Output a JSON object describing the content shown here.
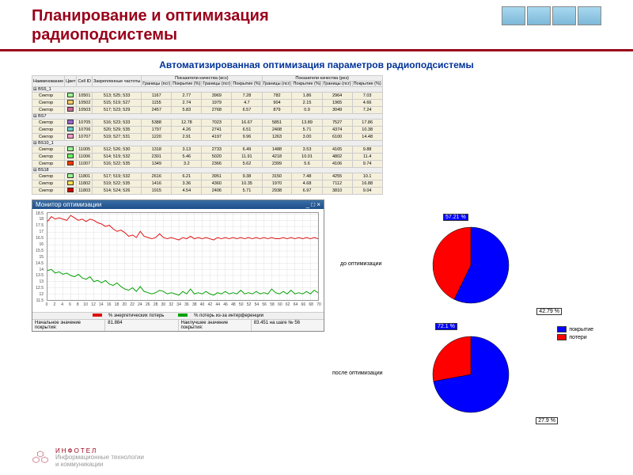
{
  "header": {
    "title_l1": "Планирование и оптимизация",
    "title_l2": "радиоподсистемы"
  },
  "subtitle": "Автоматизированная оптимизация параметров радиоподсистемы",
  "table": {
    "head_top": [
      "Наименование",
      "Цвет",
      "Cell ID",
      "Закрепленные частоты",
      "Показатели качества (исх)",
      "Показатели качества (рез)"
    ],
    "head_sub_q": [
      "Границы (псг)",
      "Покрытие (%)",
      "Границы (псг)",
      "Покрытие (%)",
      "Границы (псг)",
      "Покрытие (%)",
      "Границы (псг)",
      "Покрытие (%)"
    ],
    "groups": [
      {
        "bs": "BS5_1",
        "rows": [
          {
            "name": "Сектор",
            "c": "#99ff99",
            "id": "10501",
            "f": "513; 525; 533",
            "v": [
              "1167",
              "2.77",
              "3969",
              "7.28",
              "782",
              "1.86",
              "2964",
              "7.03"
            ]
          },
          {
            "name": "Сектор",
            "c": "#ffcc66",
            "id": "10502",
            "f": "515; 519; 527",
            "v": [
              "1155",
              "2.74",
              "1979",
              "4.7",
              "904",
              "2.15",
              "1965",
              "4.66"
            ]
          },
          {
            "name": "Сектор",
            "c": "#cc6699",
            "id": "10503",
            "f": "517; 523; 529",
            "v": [
              "2457",
              "5.83",
              "2768",
              "6.57",
              "879",
              "0.9",
              "3049",
              "7.24"
            ]
          }
        ]
      },
      {
        "bs": "BS7",
        "rows": [
          {
            "name": "Сектор",
            "c": "#9966cc",
            "id": "10705",
            "f": "516; 523; 533",
            "v": [
              "5388",
              "12.78",
              "7023",
              "16.67",
              "5851",
              "13.89",
              "7527",
              "17.86"
            ]
          },
          {
            "name": "Сектор",
            "c": "#66cccc",
            "id": "10706",
            "f": "520; 529; 535",
            "v": [
              "1797",
              "4.26",
              "2741",
              "6.51",
              "2408",
              "5.71",
              "4374",
              "10.38"
            ]
          },
          {
            "name": "Сектор",
            "c": "#ff99cc",
            "id": "10707",
            "f": "519; 527; 531",
            "v": [
              "1220",
              "2.91",
              "4197",
              "9.96",
              "1263",
              "3.00",
              "6100",
              "14.48"
            ]
          }
        ]
      },
      {
        "bs": "BS10_1",
        "rows": [
          {
            "name": "Сектор",
            "c": "#99ff99",
            "id": "11005",
            "f": "512; 526; 530",
            "v": [
              "1318",
              "3.13",
              "2733",
              "6.49",
              "1488",
              "3.53",
              "4165",
              "9.88"
            ]
          },
          {
            "name": "Сектор",
            "c": "#66ff66",
            "id": "11006",
            "f": "514; 519; 532",
            "v": [
              "2301",
              "5.46",
              "5020",
              "11.91",
              "4218",
              "10.01",
              "4802",
              "11.4"
            ]
          },
          {
            "name": "Сектор",
            "c": "#ff3300",
            "id": "11007",
            "f": "516; 522; 535",
            "v": [
              "1349",
              "3.2",
              "2366",
              "5.62",
              "2399",
              "5.6",
              "4106",
              "9.74"
            ]
          }
        ]
      },
      {
        "bs": "BS18",
        "rows": [
          {
            "name": "Сектор",
            "c": "#99ff99",
            "id": "11801",
            "f": "517; 519; 532",
            "v": [
              "2616",
              "6.21",
              "3951",
              "9.38",
              "3150",
              "7.48",
              "4255",
              "10.1"
            ]
          },
          {
            "name": "Сектор",
            "c": "#ffdd55",
            "id": "11802",
            "f": "519; 522; 535",
            "v": [
              "1416",
              "3.36",
              "4360",
              "10.35",
              "1970",
              "4.68",
              "7112",
              "16.88"
            ]
          },
          {
            "name": "Сектор",
            "c": "#cc0000",
            "id": "11803",
            "f": "514; 524; 526",
            "v": [
              "1915",
              "4.54",
              "2406",
              "5.71",
              "2938",
              "6.97",
              "3810",
              "9.04"
            ]
          }
        ]
      }
    ]
  },
  "monitor": {
    "title": "Монитор оптимизации",
    "y_ticks": [
      11.5,
      12,
      12.5,
      13,
      13.5,
      14,
      14.5,
      15,
      15.5,
      16,
      16.5,
      17,
      17.5,
      18,
      18.5
    ],
    "ylim": [
      11.5,
      18.6
    ],
    "x_ticks": [
      0,
      2,
      4,
      6,
      8,
      10,
      12,
      14,
      16,
      18,
      20,
      22,
      24,
      26,
      28,
      30,
      32,
      34,
      36,
      38,
      40,
      42,
      44,
      46,
      48,
      50,
      52,
      54,
      56,
      58,
      60,
      62,
      64,
      66,
      68,
      70
    ],
    "xlim": [
      0,
      70
    ],
    "series": [
      {
        "name": "энерг. потери",
        "color": "#e01010",
        "data": [
          17.9,
          18.3,
          18.1,
          18.2,
          18.1,
          18.0,
          18.4,
          18.2,
          18.0,
          18.1,
          17.9,
          18.1,
          18.0,
          17.8,
          17.7,
          17.5,
          17.6,
          17.3,
          17.1,
          17.2,
          17.0,
          16.7,
          16.8,
          16.6,
          17.1,
          16.7,
          16.6,
          16.5,
          16.6,
          16.9,
          16.6,
          16.5,
          16.6,
          16.5,
          16.4,
          16.6,
          16.5,
          16.7,
          16.5,
          16.6,
          16.5,
          16.6,
          16.5,
          16.4,
          16.6,
          16.5,
          16.6,
          16.5,
          16.6,
          16.5,
          16.6,
          16.5,
          16.6,
          16.5,
          16.6,
          16.5,
          16.6,
          16.5,
          16.6,
          16.5,
          16.5,
          16.6,
          16.5,
          16.6,
          16.5,
          16.6,
          16.5,
          16.6,
          16.5,
          16.6,
          16.5
        ]
      },
      {
        "name": "интерф. потери",
        "color": "#00a000",
        "data": [
          13.9,
          14.0,
          13.7,
          13.8,
          13.6,
          13.7,
          13.5,
          13.4,
          13.6,
          13.3,
          13.2,
          13.4,
          13.0,
          13.1,
          12.9,
          13.1,
          12.8,
          12.7,
          12.9,
          12.6,
          12.4,
          12.3,
          12.5,
          12.2,
          12.6,
          12.2,
          12.1,
          12.0,
          12.1,
          12.3,
          12.2,
          12.0,
          12.1,
          12.0,
          11.9,
          12.2,
          12.0,
          12.4,
          12.0,
          12.1,
          12.0,
          12.2,
          12.0,
          11.9,
          12.1,
          12.0,
          12.2,
          12.0,
          12.1,
          12.0,
          12.3,
          12.0,
          12.1,
          12.0,
          12.2,
          12.0,
          12.1,
          12.0,
          12.4,
          12.1,
          12.0,
          12.2,
          12.0,
          12.3,
          12.0,
          12.1,
          12.0,
          12.2,
          12.0,
          12.3,
          12.1
        ]
      }
    ],
    "legend": [
      "% энергетических потерь",
      "% потерь из-за интерференции"
    ],
    "bottom_left_label": "Начальное значение покрытия:",
    "bottom_left_val": "81.884",
    "bottom_right_label": "Наилучшее значение покрытия:",
    "bottom_right_val": "83.451 на шаге № 56"
  },
  "pies": {
    "before": {
      "label": "до оптимизации",
      "coverage": 57.21,
      "loss": 42.79,
      "cov_color": "#0000ff",
      "loss_color": "#ff0000"
    },
    "after": {
      "label": "после оптимизации",
      "coverage": 72.1,
      "loss": 27.9,
      "cov_color": "#0000ff",
      "loss_color": "#ff0000"
    },
    "legend": [
      {
        "c": "#0000ff",
        "t": "покрытие"
      },
      {
        "c": "#ff0000",
        "t": "потери"
      }
    ]
  },
  "footer": {
    "brand": "ИНФОТЕЛ",
    "tag": "Информационные технологии",
    "tag2": "и коммуникации",
    "logo_color": "#99001a"
  }
}
